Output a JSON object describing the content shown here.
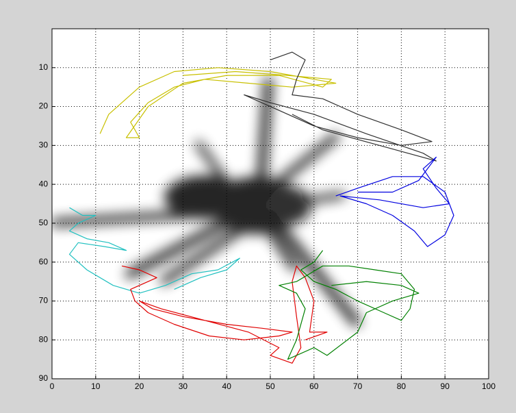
{
  "chart_data": {
    "type": "line",
    "xlim": [
      0,
      100
    ],
    "ylim": [
      0,
      90
    ],
    "y_reverse": true,
    "grid": true,
    "xticks": [
      0,
      10,
      20,
      30,
      40,
      50,
      60,
      70,
      80,
      90,
      100
    ],
    "yticks": [
      10,
      20,
      30,
      40,
      50,
      60,
      70,
      80,
      90
    ],
    "series": [
      {
        "color": "#c8c000",
        "x": [
          11,
          13,
          20,
          28,
          38,
          50,
          60,
          65,
          55,
          45,
          35,
          28,
          22,
          18,
          20,
          17,
          22,
          30,
          40,
          52,
          62,
          64,
          54,
          42,
          30
        ],
        "values": [
          27,
          22,
          15,
          11,
          10,
          11,
          13,
          14,
          15,
          14,
          13,
          15,
          19,
          24,
          28,
          28,
          20,
          14,
          12,
          12,
          15,
          13,
          12,
          11,
          12
        ]
      },
      {
        "color": "#303030",
        "x": [
          50,
          55,
          58,
          56,
          55,
          62,
          70,
          80,
          87,
          80,
          70,
          60,
          52,
          44,
          50,
          60,
          72,
          85,
          88,
          75,
          62,
          55
        ],
        "values": [
          8,
          6,
          8,
          13,
          17,
          18,
          22,
          26,
          29,
          30,
          28,
          25,
          21,
          17,
          19,
          22,
          27,
          32,
          34,
          30,
          26,
          22
        ]
      },
      {
        "color": "#0000e0",
        "x": [
          65,
          70,
          78,
          85,
          90,
          92,
          90,
          86,
          83,
          78,
          72,
          66,
          75,
          85,
          91,
          88,
          85,
          88,
          84,
          78,
          70
        ],
        "values": [
          43,
          41,
          38,
          38,
          42,
          48,
          53,
          56,
          52,
          48,
          45,
          43,
          44,
          46,
          45,
          41,
          36,
          33,
          39,
          42,
          42
        ]
      },
      {
        "color": "#20c0c0",
        "x": [
          4,
          7,
          10,
          6,
          4,
          8,
          13,
          17,
          12,
          6,
          4,
          8,
          14,
          20,
          26,
          32,
          38,
          43,
          40,
          34,
          28
        ],
        "values": [
          46,
          48,
          48,
          50,
          52,
          54,
          55,
          57,
          56,
          55,
          58,
          62,
          66,
          68,
          66,
          63,
          62,
          59,
          62,
          64,
          67
        ]
      },
      {
        "color": "#e00000",
        "x": [
          16,
          20,
          24,
          18,
          19,
          22,
          28,
          36,
          44,
          52,
          55,
          48,
          40,
          30,
          23,
          20,
          25,
          35,
          45,
          52,
          50,
          55,
          57,
          56,
          55,
          56,
          58,
          60,
          59,
          63,
          58
        ],
        "values": [
          61,
          62,
          64,
          67,
          70,
          73,
          76,
          79,
          80,
          79,
          78,
          77,
          76,
          74,
          72,
          70,
          72,
          75,
          78,
          82,
          84,
          86,
          82,
          74,
          65,
          61,
          64,
          70,
          78,
          78,
          80
        ]
      },
      {
        "color": "#008000",
        "x": [
          62,
          60,
          57,
          60,
          65,
          70,
          76,
          80,
          82,
          83,
          80,
          74,
          68,
          62,
          56,
          52,
          56,
          58,
          56,
          54,
          60,
          63,
          70,
          72,
          78,
          84,
          80,
          72,
          64
        ],
        "values": [
          57,
          60,
          62,
          65,
          67,
          70,
          73,
          75,
          72,
          67,
          63,
          62,
          61,
          61,
          65,
          66,
          68,
          72,
          80,
          85,
          82,
          84,
          78,
          73,
          70,
          68,
          66,
          65,
          66
        ]
      }
    ]
  }
}
